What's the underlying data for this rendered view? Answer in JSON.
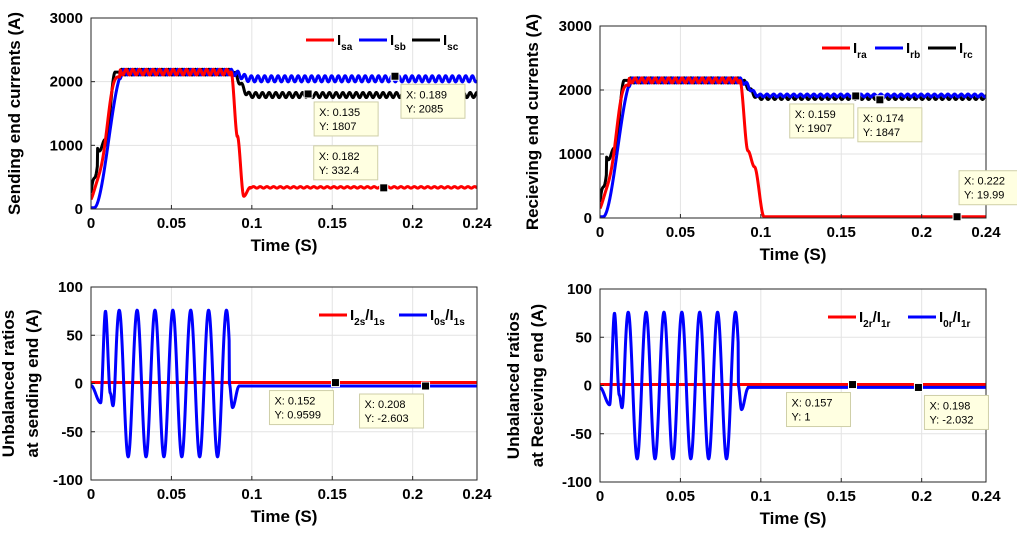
{
  "chart_data": [
    {
      "id": "p1",
      "type": "line",
      "xlabel": "Time (S)",
      "ylabel": [
        "Sending end currents (A)"
      ],
      "xlim": [
        0,
        0.24
      ],
      "ylim": [
        0,
        3000
      ],
      "xticks": [
        0,
        0.05,
        0.1,
        0.15,
        0.2,
        0.24
      ],
      "yticks": [
        0,
        1000,
        2000,
        3000
      ],
      "xticklabels": [
        "0",
        "0.05",
        "0.1",
        "0.15",
        "0.2",
        "0.24"
      ],
      "yticklabels": [
        "0",
        "1000",
        "2000",
        "3000"
      ],
      "grid": true,
      "legend_location": "top-right",
      "series": [
        {
          "name": "I_sa",
          "label_main": "I",
          "label_sub": "sa",
          "color": "#ff0000",
          "final": 340,
          "ripple": 12,
          "lagsag": 0
        },
        {
          "name": "I_sb",
          "label_main": "I",
          "label_sub": "sb",
          "color": "#0000ff",
          "final": 2045,
          "ripple": 48,
          "lagsag": 0
        },
        {
          "name": "I_sc",
          "label_main": "I",
          "label_sub": "sc",
          "color": "#000000",
          "final": 1790,
          "ripple": 40,
          "lagsag": 0
        }
      ],
      "transient": {
        "plateau": 2150,
        "plateau_ripple": 45,
        "t_fault": 0.087
      },
      "datatips": [
        {
          "x": 0.135,
          "y": 1807,
          "x_text": "X: 0.135",
          "y_text": "Y: 1807",
          "placement": "bottom-right"
        },
        {
          "x": 0.189,
          "y": 2085,
          "x_text": "X: 0.189",
          "y_text": "Y: 2085",
          "placement": "bottom-right"
        },
        {
          "x": 0.182,
          "y": 332.4,
          "x_text": "X: 0.182",
          "y_text": "Y: 332.4",
          "placement": "top-left"
        }
      ]
    },
    {
      "id": "p2",
      "type": "line",
      "xlabel": "Time (S)",
      "ylabel": [
        "Recieving end currents (A)"
      ],
      "xlim": [
        0,
        0.24
      ],
      "ylim": [
        0,
        3000
      ],
      "xticks": [
        0,
        0.05,
        0.1,
        0.15,
        0.2,
        0.24
      ],
      "yticks": [
        0,
        1000,
        2000,
        3000
      ],
      "xticklabels": [
        "0",
        "0.05",
        "0.1",
        "0.15",
        "0.2",
        "0.24"
      ],
      "yticklabels": [
        "0",
        "1000",
        "2000",
        "3000"
      ],
      "grid": true,
      "legend_location": "top-right",
      "series": [
        {
          "name": "I_ra",
          "label_main": "I",
          "label_sub": "ra",
          "color": "#ff0000",
          "final": 20,
          "ripple": 0,
          "lagsag": 0
        },
        {
          "name": "I_rb",
          "label_main": "I",
          "label_sub": "rb",
          "color": "#0000ff",
          "final": 1915,
          "ripple": 22,
          "lagsag": 0
        },
        {
          "name": "I_rc",
          "label_main": "I",
          "label_sub": "rc",
          "color": "#000000",
          "final": 1880,
          "ripple": 28,
          "lagsag": 0
        }
      ],
      "transient": {
        "plateau": 2150,
        "plateau_ripple": 40,
        "t_fault": 0.087
      },
      "datatips": [
        {
          "x": 0.159,
          "y": 1907,
          "x_text": "X: 0.159",
          "y_text": "Y: 1907",
          "placement": "bottom-left"
        },
        {
          "x": 0.174,
          "y": 1847,
          "x_text": "X: 0.174",
          "y_text": "Y: 1847",
          "placement": "bottom-center"
        },
        {
          "x": 0.222,
          "y": 19.99,
          "x_text": "X: 0.222",
          "y_text": "Y: 19.99",
          "placement": "top-center"
        }
      ]
    },
    {
      "id": "p3",
      "type": "line",
      "xlabel": "Time (S)",
      "ylabel": [
        "Unbalanced ratios",
        "at sending end (A)"
      ],
      "xlim": [
        0,
        0.24
      ],
      "ylim": [
        -100,
        100
      ],
      "xticks": [
        0,
        0.05,
        0.1,
        0.15,
        0.2,
        0.24
      ],
      "yticks": [
        -100,
        -50,
        0,
        50,
        100
      ],
      "xticklabels": [
        "0",
        "0.05",
        "0.1",
        "0.15",
        "0.2",
        "0.24"
      ],
      "yticklabels": [
        "-100",
        "-50",
        "0",
        "50",
        "100"
      ],
      "grid": true,
      "legend_location": "top-right",
      "series": [
        {
          "name": "I_2s/I_1s",
          "label_parts": [
            [
              "I",
              "2s"
            ],
            [
              "/I",
              "1s"
            ]
          ],
          "color": "#ff0000",
          "role": "flat",
          "level": 1
        },
        {
          "name": "I_0s/I_1s",
          "label_parts": [
            [
              "I",
              "0s"
            ],
            [
              "/I",
              "1s"
            ]
          ],
          "color": "#0000ff",
          "role": "osc",
          "level": -2.6,
          "amplitude": 76
        }
      ],
      "datatips": [
        {
          "x": 0.152,
          "y": 0.9599,
          "x_text": "X: 0.152",
          "y_text": "Y: 0.9599",
          "placement": "bottom-left"
        },
        {
          "x": 0.208,
          "y": -2.603,
          "x_text": "X: 0.208",
          "y_text": "Y: -2.603",
          "placement": "bottom-left"
        }
      ]
    },
    {
      "id": "p4",
      "type": "line",
      "xlabel": "Time (S)",
      "ylabel": [
        "Unbalanced ratios",
        "at Recieving end (A)"
      ],
      "xlim": [
        0,
        0.24
      ],
      "ylim": [
        -100,
        100
      ],
      "xticks": [
        0,
        0.05,
        0.1,
        0.15,
        0.2,
        0.24
      ],
      "yticks": [
        -100,
        -50,
        0,
        50,
        100
      ],
      "xticklabels": [
        "0",
        "0.05",
        "0.1",
        "0.15",
        "0.2",
        "0.24"
      ],
      "yticklabels": [
        "-100",
        "-50",
        "0",
        "50",
        "100"
      ],
      "grid": true,
      "legend_location": "top-right",
      "series": [
        {
          "name": "I_2r/I_1r",
          "label_parts": [
            [
              "I",
              "2r"
            ],
            [
              "/I",
              "1r"
            ]
          ],
          "color": "#ff0000",
          "role": "flat",
          "level": 1
        },
        {
          "name": "I_0r/I_1r",
          "label_parts": [
            [
              "I",
              "0r"
            ],
            [
              "/I",
              "1r"
            ]
          ],
          "color": "#0000ff",
          "role": "osc",
          "level": -2.0,
          "amplitude": 76
        }
      ],
      "datatips": [
        {
          "x": 0.157,
          "y": 1,
          "x_text": "X: 0.157",
          "y_text": "Y: 1",
          "placement": "bottom-left"
        },
        {
          "x": 0.198,
          "y": -2.032,
          "x_text": "X: 0.198",
          "y_text": "Y: -2.032",
          "placement": "bottom-right"
        }
      ]
    }
  ]
}
